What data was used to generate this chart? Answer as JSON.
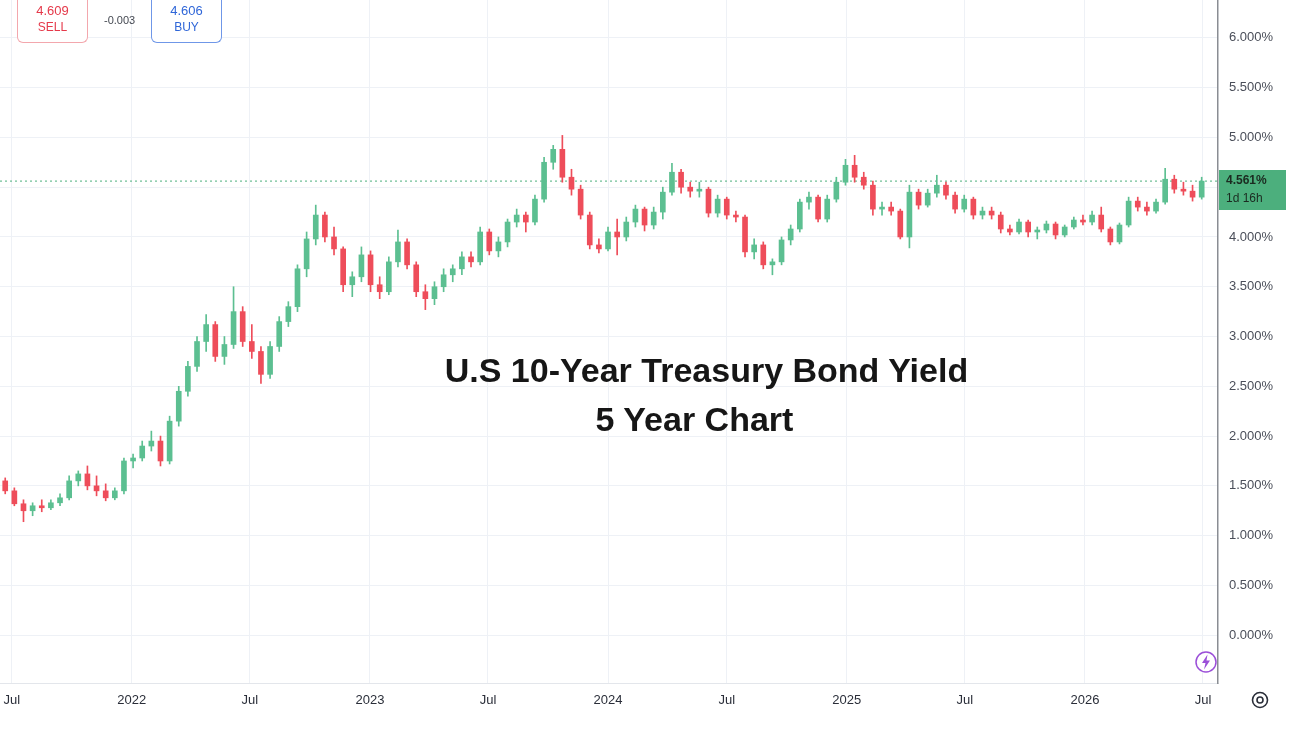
{
  "chart_data": {
    "type": "candlestick",
    "title": "U.S 10-Year Treasury Bond Yield",
    "subtitle": "5 Year Chart",
    "x": [
      "2021-06-21",
      "2021-07-05",
      "2021-07-19",
      "2021-08-02",
      "2021-08-16",
      "2021-08-30",
      "2021-09-13",
      "2021-09-27",
      "2021-10-11",
      "2021-10-25",
      "2021-11-08",
      "2021-11-22",
      "2021-12-06",
      "2021-12-20",
      "2022-01-03",
      "2022-01-17",
      "2022-01-31",
      "2022-02-14",
      "2022-02-28",
      "2022-03-14",
      "2022-03-28",
      "2022-04-11",
      "2022-04-25",
      "2022-05-09",
      "2022-05-23",
      "2022-06-06",
      "2022-06-20",
      "2022-07-04",
      "2022-07-18",
      "2022-08-01",
      "2022-08-15",
      "2022-08-29",
      "2022-09-12",
      "2022-09-26",
      "2022-10-10",
      "2022-10-24",
      "2022-11-07",
      "2022-11-21",
      "2022-12-05",
      "2022-12-19",
      "2023-01-02",
      "2023-01-16",
      "2023-01-30",
      "2023-02-13",
      "2023-02-27",
      "2023-03-13",
      "2023-03-27",
      "2023-04-10",
      "2023-04-24",
      "2023-05-08",
      "2023-05-22",
      "2023-06-05",
      "2023-06-19",
      "2023-07-03",
      "2023-07-17",
      "2023-07-31",
      "2023-08-14",
      "2023-08-28",
      "2023-09-11",
      "2023-09-25",
      "2023-10-09",
      "2023-10-23",
      "2023-11-06",
      "2023-11-20",
      "2023-12-04",
      "2023-12-18",
      "2024-01-01",
      "2024-01-15",
      "2024-01-29",
      "2024-02-12",
      "2024-02-26",
      "2024-03-11",
      "2024-03-25",
      "2024-04-08",
      "2024-04-22",
      "2024-05-06",
      "2024-05-20",
      "2024-06-03",
      "2024-06-17",
      "2024-07-01",
      "2024-07-15",
      "2024-07-29",
      "2024-08-12",
      "2024-08-26",
      "2024-09-09",
      "2024-09-23",
      "2024-10-07",
      "2024-10-21",
      "2024-11-04",
      "2024-11-18",
      "2024-12-02",
      "2024-12-16",
      "2024-12-30",
      "2025-01-13",
      "2025-01-27",
      "2025-02-10",
      "2025-02-24",
      "2025-03-10",
      "2025-03-24",
      "2025-04-07",
      "2025-04-21",
      "2025-05-05",
      "2025-05-19",
      "2025-06-02",
      "2025-06-16",
      "2025-06-30",
      "2025-07-14",
      "2025-07-28",
      "2025-08-11",
      "2025-08-25",
      "2025-09-08",
      "2025-09-22",
      "2025-10-06",
      "2025-10-20",
      "2025-11-03",
      "2025-11-17",
      "2025-12-01",
      "2025-12-15",
      "2025-12-29",
      "2026-01-12",
      "2026-01-26",
      "2026-02-09",
      "2026-02-23",
      "2026-03-09",
      "2026-03-23",
      "2026-04-06",
      "2026-04-20",
      "2026-05-04",
      "2026-05-18",
      "2026-06-01",
      "2026-06-15",
      "2026-06-29"
    ],
    "ohlc": [
      [
        1.55,
        1.58,
        1.42,
        1.45
      ],
      [
        1.45,
        1.48,
        1.3,
        1.32
      ],
      [
        1.32,
        1.36,
        1.14,
        1.25
      ],
      [
        1.25,
        1.33,
        1.2,
        1.3
      ],
      [
        1.3,
        1.36,
        1.24,
        1.28
      ],
      [
        1.28,
        1.36,
        1.26,
        1.33
      ],
      [
        1.33,
        1.42,
        1.3,
        1.38
      ],
      [
        1.38,
        1.6,
        1.36,
        1.55
      ],
      [
        1.55,
        1.65,
        1.5,
        1.62
      ],
      [
        1.62,
        1.7,
        1.46,
        1.5
      ],
      [
        1.5,
        1.6,
        1.4,
        1.45
      ],
      [
        1.45,
        1.52,
        1.35,
        1.38
      ],
      [
        1.38,
        1.48,
        1.36,
        1.45
      ],
      [
        1.45,
        1.78,
        1.42,
        1.75
      ],
      [
        1.75,
        1.82,
        1.68,
        1.78
      ],
      [
        1.78,
        1.95,
        1.75,
        1.9
      ],
      [
        1.9,
        2.05,
        1.85,
        1.95
      ],
      [
        1.95,
        2.0,
        1.7,
        1.75
      ],
      [
        1.75,
        2.2,
        1.72,
        2.15
      ],
      [
        2.15,
        2.5,
        2.1,
        2.45
      ],
      [
        2.45,
        2.75,
        2.4,
        2.7
      ],
      [
        2.7,
        3.0,
        2.65,
        2.95
      ],
      [
        2.95,
        3.22,
        2.85,
        3.12
      ],
      [
        3.12,
        3.15,
        2.75,
        2.8
      ],
      [
        2.8,
        3.0,
        2.72,
        2.92
      ],
      [
        2.92,
        3.5,
        2.88,
        3.25
      ],
      [
        3.25,
        3.3,
        2.9,
        2.95
      ],
      [
        2.95,
        3.12,
        2.78,
        2.85
      ],
      [
        2.85,
        2.9,
        2.53,
        2.62
      ],
      [
        2.62,
        2.95,
        2.58,
        2.9
      ],
      [
        2.9,
        3.2,
        2.85,
        3.15
      ],
      [
        3.15,
        3.35,
        3.1,
        3.3
      ],
      [
        3.3,
        3.72,
        3.25,
        3.68
      ],
      [
        3.68,
        4.05,
        3.6,
        3.98
      ],
      [
        3.98,
        4.32,
        3.92,
        4.22
      ],
      [
        4.22,
        4.25,
        3.95,
        4.0
      ],
      [
        4.0,
        4.1,
        3.82,
        3.88
      ],
      [
        3.88,
        3.9,
        3.45,
        3.52
      ],
      [
        3.52,
        3.65,
        3.4,
        3.6
      ],
      [
        3.6,
        3.9,
        3.55,
        3.82
      ],
      [
        3.82,
        3.86,
        3.45,
        3.52
      ],
      [
        3.52,
        3.6,
        3.38,
        3.45
      ],
      [
        3.45,
        3.8,
        3.42,
        3.75
      ],
      [
        3.75,
        4.07,
        3.7,
        3.95
      ],
      [
        3.95,
        3.98,
        3.68,
        3.72
      ],
      [
        3.72,
        3.75,
        3.4,
        3.45
      ],
      [
        3.45,
        3.52,
        3.27,
        3.38
      ],
      [
        3.38,
        3.55,
        3.32,
        3.5
      ],
      [
        3.5,
        3.68,
        3.45,
        3.62
      ],
      [
        3.62,
        3.72,
        3.55,
        3.68
      ],
      [
        3.68,
        3.85,
        3.62,
        3.8
      ],
      [
        3.8,
        3.85,
        3.7,
        3.75
      ],
      [
        3.75,
        4.1,
        3.72,
        4.05
      ],
      [
        4.05,
        4.08,
        3.82,
        3.86
      ],
      [
        3.86,
        4.0,
        3.8,
        3.95
      ],
      [
        3.95,
        4.18,
        3.9,
        4.15
      ],
      [
        4.15,
        4.28,
        4.1,
        4.22
      ],
      [
        4.22,
        4.25,
        4.05,
        4.15
      ],
      [
        4.15,
        4.42,
        4.12,
        4.38
      ],
      [
        4.38,
        4.8,
        4.35,
        4.75
      ],
      [
        4.75,
        4.92,
        4.68,
        4.88
      ],
      [
        4.88,
        5.02,
        4.55,
        4.6
      ],
      [
        4.6,
        4.68,
        4.42,
        4.48
      ],
      [
        4.48,
        4.52,
        4.18,
        4.22
      ],
      [
        4.22,
        4.25,
        3.88,
        3.92
      ],
      [
        3.92,
        3.98,
        3.84,
        3.88
      ],
      [
        3.88,
        4.1,
        3.86,
        4.05
      ],
      [
        4.05,
        4.18,
        3.82,
        4.0
      ],
      [
        4.0,
        4.2,
        3.96,
        4.15
      ],
      [
        4.15,
        4.32,
        4.1,
        4.28
      ],
      [
        4.28,
        4.3,
        4.06,
        4.12
      ],
      [
        4.12,
        4.3,
        4.08,
        4.25
      ],
      [
        4.25,
        4.5,
        4.18,
        4.45
      ],
      [
        4.45,
        4.74,
        4.42,
        4.65
      ],
      [
        4.65,
        4.68,
        4.44,
        4.5
      ],
      [
        4.5,
        4.55,
        4.4,
        4.46
      ],
      [
        4.46,
        4.55,
        4.4,
        4.48
      ],
      [
        4.48,
        4.5,
        4.2,
        4.24
      ],
      [
        4.24,
        4.42,
        4.2,
        4.38
      ],
      [
        4.38,
        4.4,
        4.18,
        4.22
      ],
      [
        4.22,
        4.26,
        4.15,
        4.2
      ],
      [
        4.2,
        4.22,
        3.8,
        3.85
      ],
      [
        3.85,
        3.98,
        3.78,
        3.92
      ],
      [
        3.92,
        3.95,
        3.68,
        3.72
      ],
      [
        3.72,
        3.78,
        3.62,
        3.75
      ],
      [
        3.75,
        4.0,
        3.72,
        3.97
      ],
      [
        3.97,
        4.12,
        3.92,
        4.08
      ],
      [
        4.08,
        4.38,
        4.05,
        4.35
      ],
      [
        4.35,
        4.45,
        4.28,
        4.4
      ],
      [
        4.4,
        4.42,
        4.15,
        4.18
      ],
      [
        4.18,
        4.42,
        4.15,
        4.38
      ],
      [
        4.38,
        4.6,
        4.35,
        4.55
      ],
      [
        4.55,
        4.78,
        4.52,
        4.72
      ],
      [
        4.72,
        4.82,
        4.55,
        4.6
      ],
      [
        4.6,
        4.65,
        4.48,
        4.52
      ],
      [
        4.52,
        4.56,
        4.22,
        4.28
      ],
      [
        4.28,
        4.35,
        4.22,
        4.3
      ],
      [
        4.3,
        4.35,
        4.22,
        4.26
      ],
      [
        4.26,
        4.28,
        3.98,
        4.0
      ],
      [
        4.0,
        4.52,
        3.89,
        4.45
      ],
      [
        4.45,
        4.48,
        4.28,
        4.32
      ],
      [
        4.32,
        4.48,
        4.3,
        4.44
      ],
      [
        4.44,
        4.62,
        4.4,
        4.52
      ],
      [
        4.52,
        4.55,
        4.38,
        4.42
      ],
      [
        4.42,
        4.45,
        4.24,
        4.28
      ],
      [
        4.28,
        4.42,
        4.25,
        4.38
      ],
      [
        4.38,
        4.4,
        4.18,
        4.22
      ],
      [
        4.22,
        4.3,
        4.18,
        4.26
      ],
      [
        4.26,
        4.3,
        4.18,
        4.22
      ],
      [
        4.22,
        4.25,
        4.04,
        4.08
      ],
      [
        4.08,
        4.12,
        4.02,
        4.05
      ],
      [
        4.05,
        4.18,
        4.03,
        4.15
      ],
      [
        4.15,
        4.17,
        4.0,
        4.05
      ],
      [
        4.05,
        4.1,
        3.98,
        4.07
      ],
      [
        4.07,
        4.16,
        4.04,
        4.13
      ],
      [
        4.13,
        4.15,
        3.98,
        4.02
      ],
      [
        4.02,
        4.12,
        4.0,
        4.1
      ],
      [
        4.1,
        4.2,
        4.08,
        4.17
      ],
      [
        4.17,
        4.22,
        4.12,
        4.15
      ],
      [
        4.15,
        4.26,
        4.12,
        4.22
      ],
      [
        4.22,
        4.3,
        4.05,
        4.08
      ],
      [
        4.08,
        4.1,
        3.92,
        3.95
      ],
      [
        3.95,
        4.14,
        3.93,
        4.12
      ],
      [
        4.12,
        4.4,
        4.1,
        4.36
      ],
      [
        4.36,
        4.4,
        4.26,
        4.3
      ],
      [
        4.3,
        4.35,
        4.22,
        4.26
      ],
      [
        4.26,
        4.38,
        4.24,
        4.35
      ],
      [
        4.35,
        4.69,
        4.33,
        4.58
      ],
      [
        4.58,
        4.62,
        4.44,
        4.48
      ],
      [
        4.48,
        4.55,
        4.42,
        4.46
      ],
      [
        4.46,
        4.52,
        4.36,
        4.4
      ],
      [
        4.4,
        4.6,
        4.38,
        4.561
      ]
    ],
    "colors": [
      "#ee4d5a",
      "#ee4d5a",
      "#ee4d5a",
      "#5cbf91",
      "#ee4d5a",
      "#5cbf91",
      "#5cbf91",
      "#5cbf91",
      "#5cbf91",
      "#ee4d5a",
      "#ee4d5a",
      "#ee4d5a",
      "#5cbf91",
      "#5cbf91",
      "#5cbf91",
      "#5cbf91",
      "#5cbf91",
      "#ee4d5a",
      "#5cbf91",
      "#5cbf91",
      "#5cbf91",
      "#5cbf91",
      "#5cbf91",
      "#ee4d5a",
      "#5cbf91",
      "#5cbf91",
      "#ee4d5a",
      "#ee4d5a",
      "#ee4d5a",
      "#5cbf91",
      "#5cbf91",
      "#5cbf91",
      "#5cbf91",
      "#5cbf91",
      "#5cbf91",
      "#ee4d5a",
      "#ee4d5a",
      "#ee4d5a",
      "#5cbf91",
      "#5cbf91",
      "#ee4d5a",
      "#ee4d5a",
      "#5cbf91",
      "#5cbf91",
      "#ee4d5a",
      "#ee4d5a",
      "#ee4d5a",
      "#5cbf91",
      "#5cbf91",
      "#5cbf91",
      "#5cbf91",
      "#ee4d5a",
      "#5cbf91",
      "#ee4d5a",
      "#5cbf91",
      "#5cbf91",
      "#5cbf91",
      "#ee4d5a",
      "#5cbf91",
      "#5cbf91",
      "#5cbf91",
      "#ee4d5a",
      "#ee4d5a",
      "#ee4d5a",
      "#ee4d5a",
      "#ee4d5a",
      "#5cbf91",
      "#ee4d5a",
      "#5cbf91",
      "#5cbf91",
      "#ee4d5a",
      "#5cbf91",
      "#5cbf91",
      "#5cbf91",
      "#ee4d5a",
      "#ee4d5a",
      "#5cbf91",
      "#ee4d5a",
      "#5cbf91",
      "#ee4d5a",
      "#ee4d5a",
      "#ee4d5a",
      "#5cbf91",
      "#ee4d5a",
      "#5cbf91",
      "#5cbf91",
      "#5cbf91",
      "#5cbf91",
      "#5cbf91",
      "#ee4d5a",
      "#5cbf91",
      "#5cbf91",
      "#5cbf91",
      "#ee4d5a",
      "#ee4d5a",
      "#ee4d5a",
      "#5cbf91",
      "#ee4d5a",
      "#ee4d5a",
      "#5cbf91",
      "#ee4d5a",
      "#5cbf91",
      "#5cbf91",
      "#ee4d5a",
      "#ee4d5a",
      "#5cbf91",
      "#ee4d5a",
      "#5cbf91",
      "#ee4d5a",
      "#ee4d5a",
      "#ee4d5a",
      "#5cbf91",
      "#ee4d5a",
      "#5cbf91",
      "#5cbf91",
      "#ee4d5a",
      "#5cbf91",
      "#5cbf91",
      "#ee4d5a",
      "#5cbf91",
      "#ee4d5a",
      "#ee4d5a",
      "#5cbf91",
      "#5cbf91",
      "#ee4d5a",
      "#ee4d5a",
      "#5cbf91",
      "#5cbf91",
      "#ee4d5a",
      "#ee4d5a",
      "#ee4d5a",
      "#5cbf91"
    ],
    "xlim": [
      "2021-06-13",
      "2026-07-24"
    ],
    "xticks": [
      {
        "value": "2021-07-01",
        "label": "Jul"
      },
      {
        "value": "2022-01-01",
        "label": "2022"
      },
      {
        "value": "2022-07-01",
        "label": "Jul"
      },
      {
        "value": "2023-01-01",
        "label": "2023"
      },
      {
        "value": "2023-07-01",
        "label": "Jul"
      },
      {
        "value": "2024-01-01",
        "label": "2024"
      },
      {
        "value": "2024-07-01",
        "label": "Jul"
      },
      {
        "value": "2025-01-01",
        "label": "2025"
      },
      {
        "value": "2025-07-01",
        "label": "Jul"
      },
      {
        "value": "2026-01-01",
        "label": "2026"
      },
      {
        "value": "2026-07-01",
        "label": "Jul"
      }
    ],
    "ylim": [
      -0.48,
      6.38
    ],
    "yticks": [
      {
        "value": 0,
        "label": "0.000%"
      },
      {
        "value": 0.5,
        "label": "0.500%"
      },
      {
        "value": 1,
        "label": "1.000%"
      },
      {
        "value": 1.5,
        "label": "1.500%"
      },
      {
        "value": 2,
        "label": "2.000%"
      },
      {
        "value": 2.5,
        "label": "2.500%"
      },
      {
        "value": 3,
        "label": "3.000%"
      },
      {
        "value": 3.5,
        "label": "3.500%"
      },
      {
        "value": 4,
        "label": "4.000%"
      },
      {
        "value": 4.5,
        "label": null
      },
      {
        "value": 5,
        "label": "5.000%"
      },
      {
        "value": 5.5,
        "label": "5.500%"
      },
      {
        "value": 6,
        "label": "6.000%"
      }
    ],
    "grid": true,
    "ref_lines": [
      {
        "axis": "y",
        "value": 4.561,
        "label": "4.561%",
        "color": "#4caf7d",
        "line_style": "dotted"
      }
    ],
    "annotations": [
      "4.609",
      "SELL",
      "-0.003",
      "4.606",
      "BUY",
      "1d 16h"
    ]
  }
}
